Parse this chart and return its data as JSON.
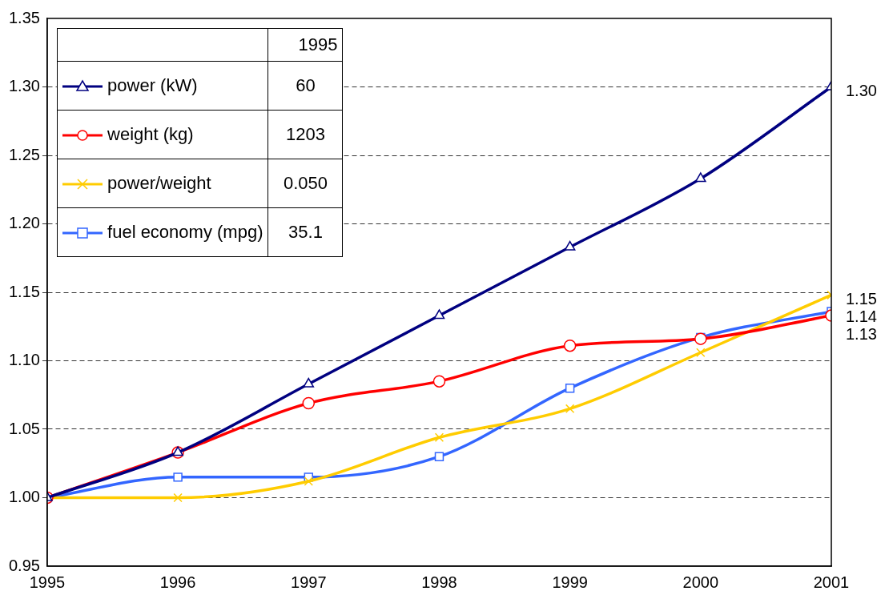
{
  "chart_data": {
    "type": "line",
    "legend_title": "1995",
    "x": [
      1995,
      1996,
      1997,
      1998,
      1999,
      2000,
      2001
    ],
    "xlim": [
      1995,
      2001
    ],
    "xticks": [
      1995,
      1996,
      1997,
      1998,
      1999,
      2000,
      2001
    ],
    "ylim": [
      0.95,
      1.35
    ],
    "yticks": [
      {
        "value": 0.95,
        "label": "0.95"
      },
      {
        "value": 1.0,
        "label": "1.00"
      },
      {
        "value": 1.05,
        "label": "1.05"
      },
      {
        "value": 1.1,
        "label": "1.10"
      },
      {
        "value": 1.15,
        "label": "1.15"
      },
      {
        "value": 1.2,
        "label": "1.20"
      },
      {
        "value": 1.25,
        "label": "1.25"
      },
      {
        "value": 1.3,
        "label": "1.30"
      },
      {
        "value": 1.35,
        "label": "1.35"
      }
    ],
    "grid": "y",
    "legend": "top left",
    "annotations": [
      "60",
      "1203",
      "0.050",
      "35.1"
    ],
    "series": [
      {
        "name": "power (kW)",
        "color": "#000080",
        "marker": "triangle",
        "values": [
          1.0,
          1.033,
          1.083,
          1.133,
          1.183,
          1.233,
          1.3
        ],
        "value_labels": [
          null,
          null,
          null,
          null,
          null,
          null,
          "1.30"
        ]
      },
      {
        "name": "weight (kg)",
        "color": "#ff0000",
        "marker": "circle",
        "values": [
          1.0,
          1.033,
          1.069,
          1.085,
          1.111,
          1.116,
          1.133
        ],
        "value_labels": [
          null,
          null,
          null,
          null,
          null,
          null,
          "1.13"
        ]
      },
      {
        "name": "power/weight",
        "color": "#ffcc00",
        "marker": "cross",
        "values": [
          1.0,
          1.0,
          1.012,
          1.044,
          1.065,
          1.106,
          1.148
        ],
        "value_labels": [
          null,
          null,
          null,
          null,
          null,
          null,
          "1.15"
        ]
      },
      {
        "name": "fuel economy (mpg)",
        "color": "#3366ff",
        "marker": "square",
        "values": [
          1.0,
          1.015,
          1.015,
          1.03,
          1.08,
          1.117,
          1.136
        ],
        "value_labels": [
          null,
          null,
          null,
          null,
          null,
          null,
          "1.14"
        ]
      }
    ]
  }
}
